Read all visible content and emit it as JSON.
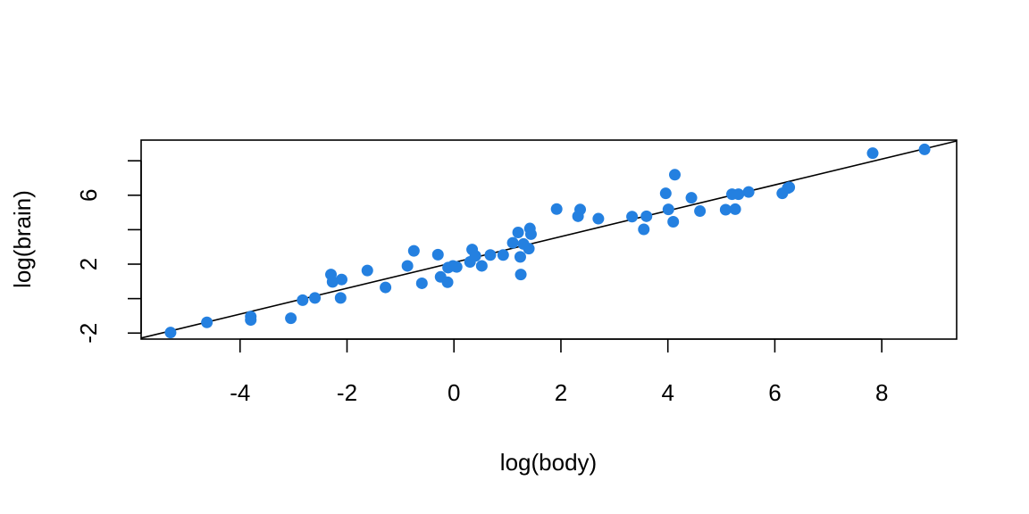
{
  "chart_data": {
    "type": "scatter",
    "xlabel": "log(body)",
    "ylabel": "log(brain)",
    "x_ticks": [
      -4,
      -2,
      0,
      2,
      4,
      6,
      8
    ],
    "y_ticks": [
      -2,
      2,
      6
    ],
    "xlim": [
      -5.85,
      9.4
    ],
    "ylim": [
      -2.35,
      9.2
    ],
    "grid": false,
    "legend": "none",
    "point_color": "#2480e0",
    "regression_line": {
      "intercept": 2.1,
      "slope": 0.75
    },
    "points": [
      [
        -5.3,
        -1.97
      ],
      [
        -4.62,
        -1.38
      ],
      [
        -3.8,
        -1.04
      ],
      [
        -3.8,
        -1.24
      ],
      [
        -3.05,
        -1.14
      ],
      [
        -2.83,
        -0.09
      ],
      [
        -2.6,
        0.04
      ],
      [
        -2.3,
        1.4
      ],
      [
        -2.27,
        0.97
      ],
      [
        -2.12,
        0.04
      ],
      [
        -2.1,
        1.11
      ],
      [
        -1.62,
        1.63
      ],
      [
        -1.28,
        0.65
      ],
      [
        -0.87,
        1.9
      ],
      [
        -0.75,
        2.77
      ],
      [
        -0.6,
        0.89
      ],
      [
        -0.3,
        2.55
      ],
      [
        -0.25,
        1.26
      ],
      [
        -0.12,
        0.95
      ],
      [
        -0.11,
        1.8
      ],
      [
        -0.02,
        1.9
      ],
      [
        0.05,
        1.84
      ],
      [
        0.3,
        2.13
      ],
      [
        0.34,
        2.85
      ],
      [
        0.4,
        2.48
      ],
      [
        0.52,
        1.9
      ],
      [
        0.68,
        2.53
      ],
      [
        0.92,
        2.53
      ],
      [
        1.1,
        3.24
      ],
      [
        1.2,
        3.84
      ],
      [
        1.24,
        2.42
      ],
      [
        1.25,
        1.4
      ],
      [
        1.3,
        3.17
      ],
      [
        1.4,
        2.9
      ],
      [
        1.42,
        4.07
      ],
      [
        1.44,
        3.74
      ],
      [
        1.92,
        5.2
      ],
      [
        2.32,
        4.78
      ],
      [
        2.36,
        5.17
      ],
      [
        2.7,
        4.64
      ],
      [
        3.33,
        4.76
      ],
      [
        3.55,
        4.02
      ],
      [
        3.6,
        4.78
      ],
      [
        3.96,
        6.11
      ],
      [
        4.01,
        5.18
      ],
      [
        4.1,
        4.46
      ],
      [
        4.13,
        7.19
      ],
      [
        4.44,
        5.85
      ],
      [
        4.6,
        5.08
      ],
      [
        5.08,
        5.16
      ],
      [
        5.2,
        6.06
      ],
      [
        5.26,
        5.19
      ],
      [
        5.32,
        6.06
      ],
      [
        5.51,
        6.19
      ],
      [
        6.14,
        6.11
      ],
      [
        6.24,
        6.41
      ],
      [
        6.27,
        6.46
      ],
      [
        7.83,
        8.44
      ],
      [
        8.8,
        8.66
      ]
    ]
  }
}
